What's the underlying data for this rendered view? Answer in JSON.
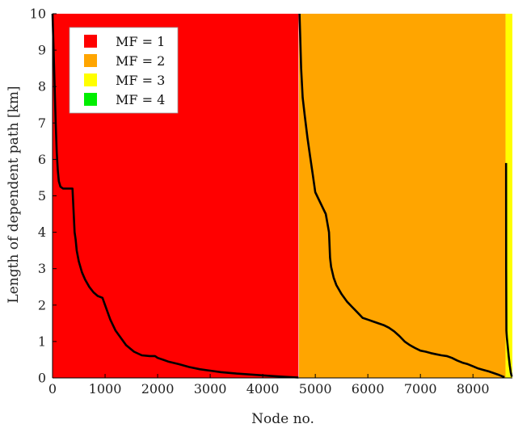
{
  "chart_data": {
    "type": "area",
    "title": "",
    "xlabel": "Node no.",
    "ylabel": "Length of dependent path [km]",
    "xlim": [
      0,
      8750
    ],
    "ylim": [
      0,
      10
    ],
    "xticks": [
      "0",
      "1000",
      "2000",
      "3000",
      "4000",
      "5000",
      "6000",
      "7000",
      "8000"
    ],
    "yticks": [
      "0",
      "1",
      "2",
      "3",
      "4",
      "5",
      "6",
      "7",
      "8",
      "9",
      "10"
    ],
    "xtick_values": [
      0,
      1000,
      2000,
      3000,
      4000,
      5000,
      6000,
      7000,
      8000
    ],
    "ytick_values": [
      0,
      1,
      2,
      3,
      4,
      5,
      6,
      7,
      8,
      9,
      10
    ],
    "grid": false,
    "legend_position": "top-left",
    "legend": [
      {
        "label": "MF = 1",
        "color": "#ff0000"
      },
      {
        "label": "MF = 2",
        "color": "#ffa500"
      },
      {
        "label": "MF = 3",
        "color": "#ffff00"
      },
      {
        "label": "MF = 4",
        "color": "#00ee00"
      }
    ],
    "regions": [
      {
        "name": "MF = 1",
        "x_start": 0,
        "x_end": 4680,
        "color": "#ff0000"
      },
      {
        "name": "MF = 2",
        "x_start": 4690,
        "x_end": 8620,
        "color": "#ffa500"
      },
      {
        "name": "MF = 3",
        "x_start": 8620,
        "x_end": 8750,
        "color": "#ffff00"
      }
    ],
    "line_color": "#000000",
    "series": [
      {
        "x": [
          0,
          20,
          40,
          60,
          80,
          100,
          120,
          150,
          200,
          250,
          300,
          380,
          420,
          440,
          460,
          500,
          560,
          620,
          700,
          780,
          860,
          950,
          1000,
          1100,
          1200,
          1300,
          1400,
          1550,
          1700,
          1850,
          1950,
          2000,
          2100,
          2200,
          2400,
          2600,
          2800,
          3000,
          3200,
          3500,
          3800,
          4100,
          4400,
          4680
        ],
        "y": [
          10,
          9.0,
          8.0,
          7.0,
          6.2,
          5.7,
          5.4,
          5.25,
          5.2,
          5.2,
          5.2,
          5.2,
          4.0,
          3.8,
          3.5,
          3.2,
          2.9,
          2.7,
          2.5,
          2.35,
          2.25,
          2.2,
          2.0,
          1.6,
          1.3,
          1.1,
          0.9,
          0.72,
          0.62,
          0.6,
          0.6,
          0.55,
          0.5,
          0.45,
          0.38,
          0.3,
          0.24,
          0.2,
          0.16,
          0.12,
          0.09,
          0.06,
          0.03,
          0.01
        ]
      },
      {
        "x": [
          4700,
          4710,
          4730,
          4760,
          4800,
          4850,
          4900,
          4950,
          5000,
          5100,
          5200,
          5260,
          5280,
          5300,
          5350,
          5400,
          5500,
          5600,
          5700,
          5800,
          5900,
          6000,
          6100,
          6200,
          6300,
          6400,
          6500,
          6600,
          6700,
          6800,
          6900,
          7000,
          7100,
          7200,
          7300,
          7400,
          7500,
          7600,
          7700,
          7800,
          7900,
          8000,
          8100,
          8200,
          8300,
          8400,
          8500,
          8600
        ],
        "y": [
          10,
          9.5,
          8.5,
          7.7,
          7.2,
          6.6,
          6.1,
          5.6,
          5.1,
          4.8,
          4.5,
          4.0,
          3.3,
          3.05,
          2.75,
          2.55,
          2.3,
          2.1,
          1.95,
          1.8,
          1.65,
          1.6,
          1.55,
          1.5,
          1.45,
          1.38,
          1.28,
          1.15,
          1.0,
          0.9,
          0.82,
          0.75,
          0.72,
          0.68,
          0.65,
          0.62,
          0.6,
          0.55,
          0.48,
          0.42,
          0.38,
          0.32,
          0.26,
          0.22,
          0.18,
          0.13,
          0.08,
          0.02
        ]
      },
      {
        "x": [
          8630,
          8632,
          8636,
          8645,
          8660,
          8680,
          8700,
          8720,
          8740
        ],
        "y": [
          5.9,
          3.0,
          1.3,
          1.1,
          0.9,
          0.6,
          0.35,
          0.15,
          0.03
        ]
      }
    ]
  }
}
